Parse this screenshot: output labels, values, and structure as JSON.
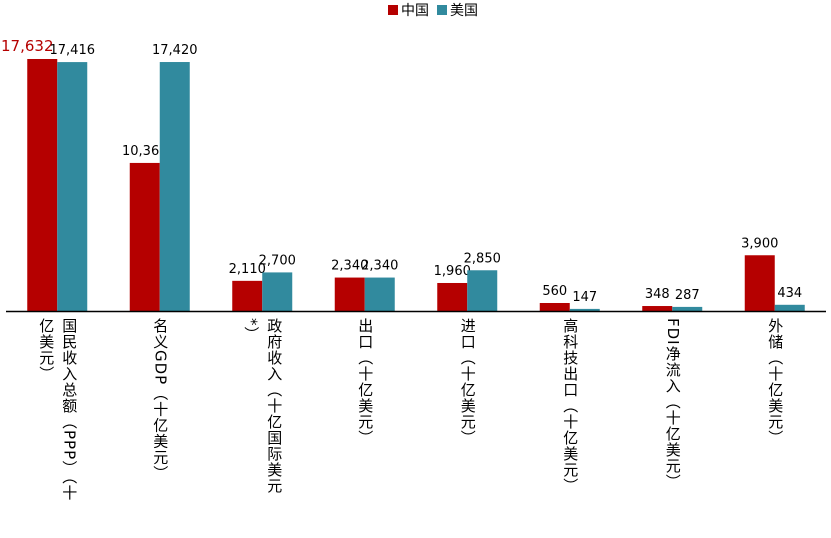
{
  "chart_data": {
    "type": "bar",
    "title": "",
    "xlabel": "",
    "ylabel": "",
    "ylim": [
      0,
      17632
    ],
    "grid": false,
    "legend_position": "top",
    "categories": [
      [
        "国民收入总额（PPP）（十",
        "亿美元）"
      ],
      [
        "名义GDP（十亿美元）"
      ],
      [
        "政府收入（十亿国际美元",
        "*）"
      ],
      [
        "出口（十亿美元）"
      ],
      [
        "进口（十亿美元）"
      ],
      [
        "高科技出口（十亿美元）"
      ],
      [
        "FDI净流入（十亿美元）"
      ],
      [
        "外储（十亿美元）"
      ]
    ],
    "series": [
      {
        "name": "中国",
        "color": "#B50000",
        "values": [
          17632,
          10360,
          2110,
          2340,
          1960,
          560,
          348,
          3900
        ],
        "labels": [
          "17,632",
          "10,360",
          "2,110",
          "2,340",
          "1,960",
          "560",
          "348",
          "3,900"
        ]
      },
      {
        "name": "美国",
        "color": "#318A9E",
        "values": [
          17416,
          17420,
          2700,
          2340,
          2850,
          147,
          287,
          434
        ],
        "labels": [
          "17,416",
          "17,420",
          "2,700",
          "2,340",
          "2,850",
          "147",
          "287",
          "434"
        ]
      }
    ],
    "highlight_label": {
      "series": 0,
      "index": 0,
      "color": "#B50000"
    }
  }
}
